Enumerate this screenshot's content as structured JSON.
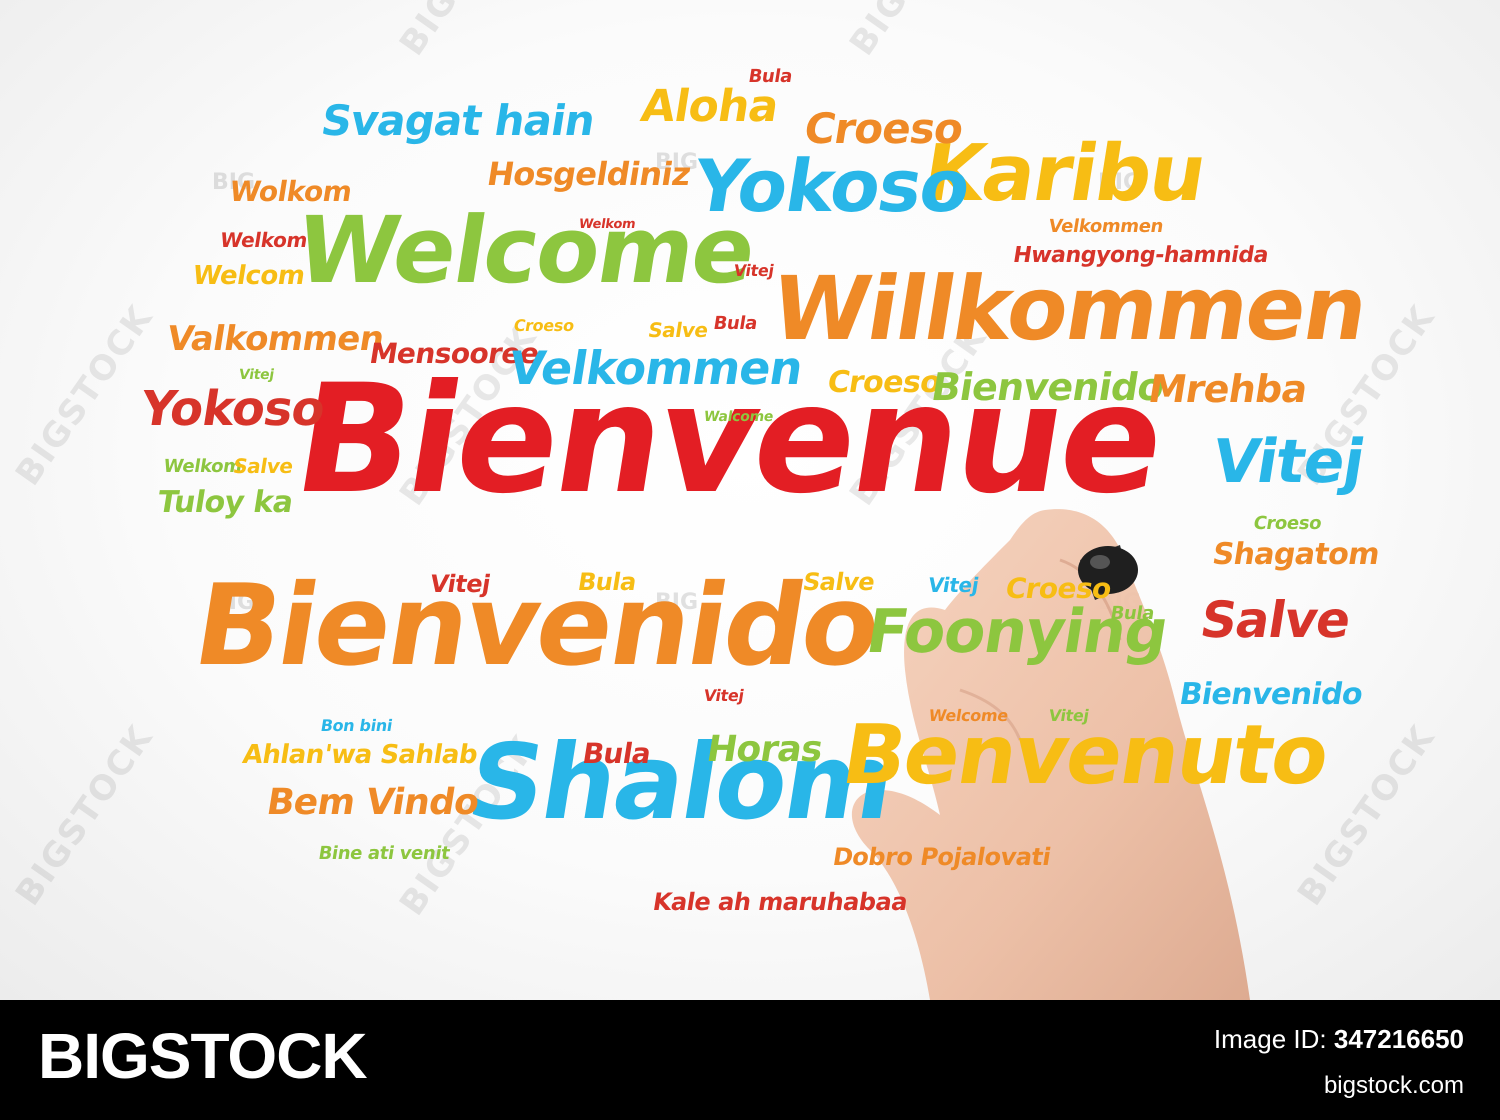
{
  "word_cloud": {
    "words": [
      {
        "text": "Bienvenue",
        "color": "#e31e24"
      },
      {
        "text": "Bienvenido",
        "color": "#ef8a27"
      },
      {
        "text": "Shalom",
        "color": "#29b6e8"
      },
      {
        "text": "Welcome",
        "color": "#8dc63f"
      },
      {
        "text": "Willkommen",
        "color": "#ef8a27"
      },
      {
        "text": "Karibu",
        "color": "#f7bd14"
      },
      {
        "text": "Yokoso",
        "color": "#29b6e8"
      },
      {
        "text": "Benvenuto",
        "color": "#f7bd14"
      },
      {
        "text": "Svagat hain",
        "color": "#29b6e8"
      },
      {
        "text": "Aloha",
        "color": "#f7bd14"
      },
      {
        "text": "Bula",
        "color": "#d7342a"
      },
      {
        "text": "Croeso",
        "color": "#ef8a27"
      },
      {
        "text": "Hosgeldiniz",
        "color": "#ef8a27"
      },
      {
        "text": "Wolkom",
        "color": "#ef8a27"
      },
      {
        "text": "Welkom",
        "color": "#d7342a"
      },
      {
        "text": "Welkom",
        "color": "#d7342a"
      },
      {
        "text": "Welcom",
        "color": "#f7bd14"
      },
      {
        "text": "Vitej",
        "color": "#d7342a"
      },
      {
        "text": "Velkommen",
        "color": "#ef8a27"
      },
      {
        "text": "Hwangyong-hamnida",
        "color": "#d7342a"
      },
      {
        "text": "Valkommen",
        "color": "#ef8a27"
      },
      {
        "text": "Mensooree",
        "color": "#d7342a"
      },
      {
        "text": "Croeso",
        "color": "#f7bd14"
      },
      {
        "text": "Salve",
        "color": "#f7bd14"
      },
      {
        "text": "Bula",
        "color": "#d7342a"
      },
      {
        "text": "Velkommen",
        "color": "#29b6e8"
      },
      {
        "text": "Croeso",
        "color": "#f7bd14"
      },
      {
        "text": "Bienvenido",
        "color": "#8dc63f"
      },
      {
        "text": "Mrehba",
        "color": "#ef8a27"
      },
      {
        "text": "Yokoso",
        "color": "#d7342a"
      },
      {
        "text": "Vitej",
        "color": "#8dc63f"
      },
      {
        "text": "Walcome",
        "color": "#8dc63f"
      },
      {
        "text": "Welkom",
        "color": "#8dc63f"
      },
      {
        "text": "Salve",
        "color": "#f7bd14"
      },
      {
        "text": "Vitej",
        "color": "#29b6e8"
      },
      {
        "text": "Tuloy ka",
        "color": "#8dc63f"
      },
      {
        "text": "Croeso",
        "color": "#8dc63f"
      },
      {
        "text": "Shagatom",
        "color": "#ef8a27"
      },
      {
        "text": "Vitej",
        "color": "#d7342a"
      },
      {
        "text": "Bula",
        "color": "#f7bd14"
      },
      {
        "text": "Salve",
        "color": "#f7bd14"
      },
      {
        "text": "Vitej",
        "color": "#29b6e8"
      },
      {
        "text": "Croeso",
        "color": "#f7bd14"
      },
      {
        "text": "Foonying",
        "color": "#8dc63f"
      },
      {
        "text": "Bula",
        "color": "#8dc63f"
      },
      {
        "text": "Salve",
        "color": "#d7342a"
      },
      {
        "text": "Bienvenido",
        "color": "#29b6e8"
      },
      {
        "text": "Vitej",
        "color": "#d7342a"
      },
      {
        "text": "Welcome",
        "color": "#ef8a27"
      },
      {
        "text": "Vitej",
        "color": "#8dc63f"
      },
      {
        "text": "Bon bini",
        "color": "#29b6e8"
      },
      {
        "text": "Ahlan'wa Sahlab",
        "color": "#f7bd14"
      },
      {
        "text": "Bula",
        "color": "#d7342a"
      },
      {
        "text": "Horas",
        "color": "#8dc63f"
      },
      {
        "text": "Bem Vindo",
        "color": "#ef8a27"
      },
      {
        "text": "Bine ati venit",
        "color": "#8dc63f"
      },
      {
        "text": "Dobro Pojalovati",
        "color": "#ef8a27"
      },
      {
        "text": "Kale ah maruhabaa",
        "color": "#d7342a"
      }
    ]
  },
  "watermark": {
    "big": "BIG",
    "stock": "BIGSTOCK"
  },
  "footer": {
    "brand": "BIGSTOCK",
    "image_id_label": "Image ID:",
    "image_id": "347216650",
    "site": "bigstock.com"
  }
}
